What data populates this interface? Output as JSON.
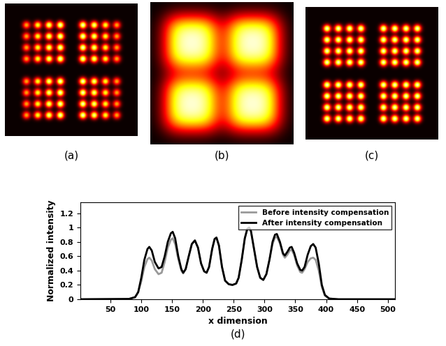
{
  "panel_labels": [
    "(a)",
    "(b)",
    "(c)",
    "(d)"
  ],
  "chart_data": {
    "type": "line",
    "xlabel": "x dimension",
    "ylabel": "Normalized intensity",
    "x": [
      1,
      80,
      90,
      95,
      100,
      105,
      110,
      113,
      117,
      122,
      128,
      133,
      138,
      143,
      148,
      151,
      155,
      160,
      165,
      168,
      172,
      177,
      182,
      187,
      192,
      197,
      202,
      206,
      210,
      215,
      219,
      222,
      226,
      231,
      236,
      242,
      248,
      254,
      258,
      263,
      268,
      272,
      275,
      278,
      283,
      288,
      293,
      298,
      303,
      308,
      313,
      317,
      320,
      325,
      330,
      333,
      337,
      341,
      344,
      348,
      353,
      358,
      361,
      365,
      370,
      375,
      379,
      383,
      388,
      393,
      398,
      405,
      420,
      512
    ],
    "series": [
      {
        "name": "Before intensity compensation",
        "color": "#999999",
        "line_style": "solid",
        "values": [
          0,
          0.005,
          0.03,
          0.1,
          0.25,
          0.45,
          0.56,
          0.58,
          0.54,
          0.42,
          0.35,
          0.37,
          0.52,
          0.72,
          0.83,
          0.85,
          0.77,
          0.56,
          0.4,
          0.36,
          0.42,
          0.6,
          0.77,
          0.82,
          0.72,
          0.5,
          0.39,
          0.37,
          0.45,
          0.7,
          0.84,
          0.86,
          0.75,
          0.45,
          0.26,
          0.21,
          0.2,
          0.22,
          0.3,
          0.55,
          0.85,
          0.98,
          1.0,
          0.95,
          0.7,
          0.45,
          0.3,
          0.27,
          0.35,
          0.55,
          0.77,
          0.86,
          0.87,
          0.78,
          0.62,
          0.58,
          0.62,
          0.68,
          0.69,
          0.62,
          0.47,
          0.38,
          0.37,
          0.42,
          0.52,
          0.57,
          0.58,
          0.55,
          0.4,
          0.17,
          0.05,
          0.01,
          0.0,
          0
        ]
      },
      {
        "name": "After intensity compensation",
        "color": "#000000",
        "line_style": "solid",
        "values": [
          0,
          0.005,
          0.03,
          0.1,
          0.3,
          0.55,
          0.7,
          0.73,
          0.68,
          0.52,
          0.43,
          0.45,
          0.6,
          0.8,
          0.92,
          0.94,
          0.85,
          0.6,
          0.42,
          0.37,
          0.42,
          0.6,
          0.77,
          0.82,
          0.72,
          0.5,
          0.39,
          0.37,
          0.45,
          0.7,
          0.84,
          0.86,
          0.75,
          0.45,
          0.26,
          0.21,
          0.2,
          0.22,
          0.3,
          0.55,
          0.85,
          0.98,
          1.0,
          0.95,
          0.7,
          0.45,
          0.3,
          0.27,
          0.35,
          0.55,
          0.8,
          0.9,
          0.91,
          0.8,
          0.64,
          0.61,
          0.66,
          0.72,
          0.73,
          0.65,
          0.5,
          0.41,
          0.4,
          0.45,
          0.62,
          0.74,
          0.77,
          0.72,
          0.5,
          0.2,
          0.06,
          0.01,
          0.0,
          0
        ]
      }
    ],
    "xlim": [
      1,
      512
    ],
    "xticks": [
      50,
      100,
      150,
      200,
      250,
      300,
      350,
      400,
      450,
      500
    ],
    "ylim": [
      0,
      1.35
    ],
    "yticks": [
      0,
      0.2,
      0.4,
      0.6,
      0.8,
      1,
      1.2
    ],
    "legend": "upper right",
    "grid": false
  }
}
